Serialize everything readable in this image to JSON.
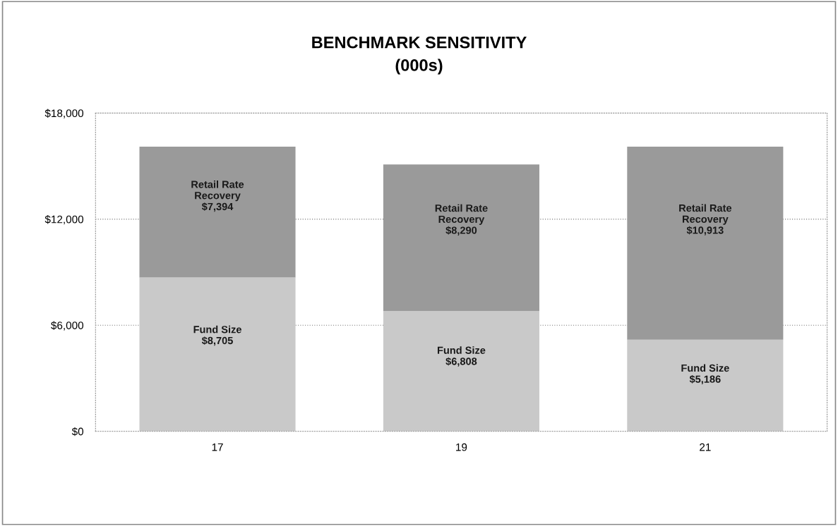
{
  "chart_data": {
    "type": "bar",
    "title": "BENCHMARK SENSITIVITY\n(000s)",
    "stacked": true,
    "categories": [
      "17",
      "19",
      "21"
    ],
    "series": [
      {
        "name": "Fund Size",
        "color": "#c9c9c9",
        "values": [
          8705,
          6808,
          5186
        ],
        "value_labels": [
          "$8,705",
          "$6,808",
          "$5,186"
        ]
      },
      {
        "name": "Retail Rate Recovery",
        "color": "#9a9a9a",
        "values": [
          7394,
          8290,
          10913
        ],
        "value_labels": [
          "$7,394",
          "$8,290",
          "$10,913"
        ]
      }
    ],
    "ylim": [
      0,
      18000
    ],
    "yticks": [
      {
        "value": 0,
        "label": "$0"
      },
      {
        "value": 6000,
        "label": "$6,000"
      },
      {
        "value": 12000,
        "label": "$12,000"
      },
      {
        "value": 18000,
        "label": "$18,000"
      }
    ],
    "grid": "y",
    "legend": false
  }
}
